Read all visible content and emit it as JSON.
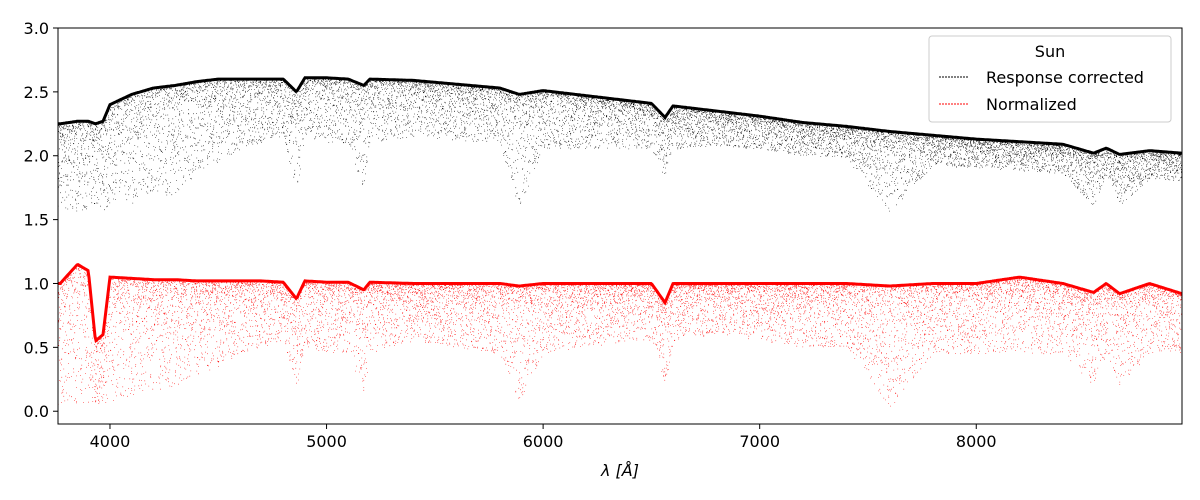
{
  "chart_data": {
    "type": "scatter",
    "title": "",
    "xlabel": "λ [Å]",
    "ylabel": "",
    "xlim": [
      3760,
      8950
    ],
    "ylim": [
      -0.1,
      3.0
    ],
    "grid": false,
    "x_ticks": [
      4000,
      5000,
      6000,
      7000,
      8000
    ],
    "x_tick_labels": [
      "4000",
      "5000",
      "6000",
      "7000",
      "8000"
    ],
    "y_ticks": [
      0.0,
      0.5,
      1.0,
      1.5,
      2.0,
      2.5,
      3.0
    ],
    "y_tick_labels": [
      "0.0",
      "0.5",
      "1.0",
      "1.5",
      "2.0",
      "2.5",
      "3.0"
    ],
    "legend": {
      "title": "Sun",
      "placement": "top-right",
      "entries": [
        "Response corrected",
        "Normalized"
      ]
    },
    "series": [
      {
        "name": "Response corrected",
        "color": "#000000",
        "x": [
          3770,
          3850,
          3900,
          3933,
          3968,
          4000,
          4100,
          4200,
          4300,
          4400,
          4500,
          4600,
          4700,
          4800,
          4861,
          4900,
          5000,
          5100,
          5172,
          5200,
          5400,
          5600,
          5800,
          5890,
          6000,
          6200,
          6400,
          6500,
          6563,
          6600,
          6800,
          7000,
          7200,
          7400,
          7600,
          7800,
          8000,
          8200,
          8400,
          8542,
          8600,
          8662,
          8800,
          8950
        ],
        "continuum": [
          2.25,
          2.27,
          2.27,
          2.25,
          2.27,
          2.4,
          2.48,
          2.53,
          2.55,
          2.58,
          2.6,
          2.6,
          2.6,
          2.6,
          2.5,
          2.61,
          2.61,
          2.6,
          2.55,
          2.6,
          2.59,
          2.56,
          2.53,
          2.48,
          2.51,
          2.47,
          2.43,
          2.41,
          2.3,
          2.39,
          2.35,
          2.31,
          2.26,
          2.23,
          2.19,
          2.16,
          2.13,
          2.11,
          2.09,
          2.02,
          2.06,
          2.01,
          2.04,
          2.02
        ],
        "lower_envelope": [
          1.6,
          1.55,
          1.58,
          1.57,
          1.57,
          1.6,
          1.62,
          1.66,
          1.7,
          1.85,
          1.95,
          2.05,
          2.1,
          2.15,
          1.7,
          2.15,
          2.1,
          2.1,
          1.7,
          2.1,
          2.15,
          2.12,
          2.1,
          1.58,
          2.05,
          2.05,
          2.05,
          2.05,
          1.82,
          2.05,
          2.08,
          2.05,
          2.0,
          1.98,
          1.55,
          1.92,
          1.9,
          1.88,
          1.86,
          1.6,
          1.85,
          1.6,
          1.82,
          1.8
        ]
      },
      {
        "name": "Normalized",
        "color": "#ff0000",
        "x": [
          3770,
          3850,
          3900,
          3933,
          3968,
          4000,
          4100,
          4200,
          4300,
          4400,
          4500,
          4600,
          4700,
          4800,
          4861,
          4900,
          5000,
          5100,
          5172,
          5200,
          5400,
          5600,
          5800,
          5890,
          6000,
          6200,
          6400,
          6500,
          6563,
          6600,
          6800,
          7000,
          7200,
          7400,
          7600,
          7800,
          8000,
          8200,
          8400,
          8542,
          8600,
          8662,
          8800,
          8950
        ],
        "continuum": [
          1.0,
          1.15,
          1.1,
          0.55,
          0.6,
          1.05,
          1.04,
          1.03,
          1.03,
          1.02,
          1.02,
          1.02,
          1.02,
          1.01,
          0.88,
          1.02,
          1.01,
          1.01,
          0.95,
          1.01,
          1.0,
          1.0,
          1.0,
          0.98,
          1.0,
          1.0,
          1.0,
          1.0,
          0.85,
          1.0,
          1.0,
          1.0,
          1.0,
          1.0,
          0.98,
          1.0,
          1.0,
          1.05,
          1.0,
          0.93,
          1.0,
          0.92,
          1.0,
          0.92
        ],
        "lower_envelope": [
          0.05,
          0.06,
          0.07,
          0.06,
          0.06,
          0.08,
          0.1,
          0.15,
          0.2,
          0.28,
          0.35,
          0.45,
          0.5,
          0.55,
          0.15,
          0.5,
          0.45,
          0.45,
          0.1,
          0.45,
          0.55,
          0.5,
          0.45,
          0.06,
          0.45,
          0.5,
          0.55,
          0.55,
          0.18,
          0.55,
          0.6,
          0.55,
          0.5,
          0.5,
          0.02,
          0.45,
          0.45,
          0.45,
          0.45,
          0.2,
          0.45,
          0.2,
          0.45,
          0.45
        ]
      }
    ]
  }
}
